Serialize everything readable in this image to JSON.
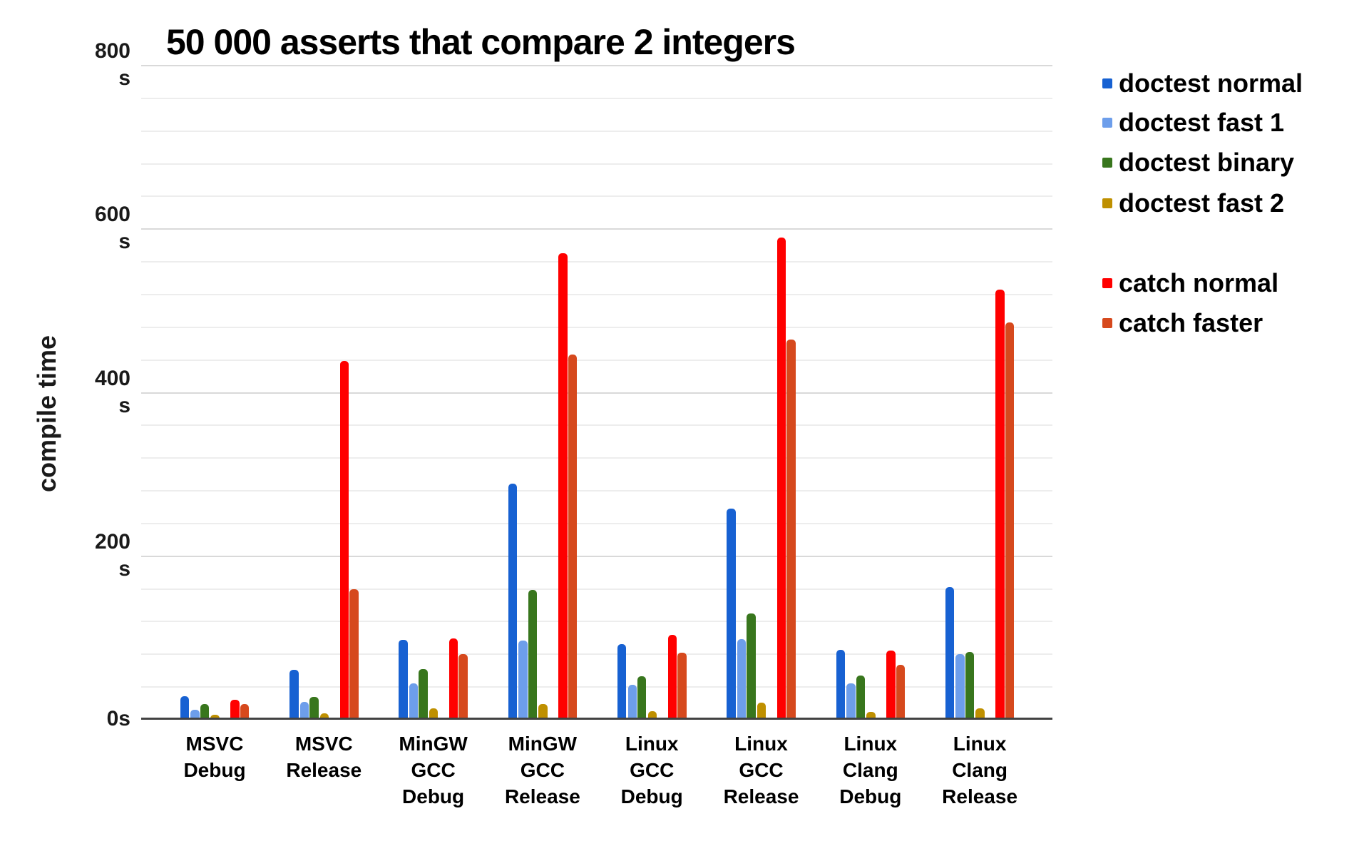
{
  "title": "50 000 asserts that compare 2 integers",
  "y_axis": {
    "title": "compile time",
    "unit": "s",
    "tick_labels": [
      "800\ns",
      "600\ns",
      "400\ns",
      "200\ns",
      "0s"
    ],
    "tick_values": [
      800,
      600,
      400,
      200,
      0
    ]
  },
  "legend": {
    "position": "right",
    "group_gap_after_index": 3,
    "entries_y": [
      117,
      172,
      228,
      285,
      397,
      453
    ]
  },
  "chart_data": {
    "type": "bar",
    "title": "50 000 asserts that compare 2 integers",
    "xlabel": "",
    "ylabel": "compile time",
    "unit": "s",
    "ylim": [
      0,
      800
    ],
    "yticks": [
      0,
      200,
      400,
      600,
      800
    ],
    "minor_gridline_step": 40,
    "grid": true,
    "legend_position": "right",
    "categories": [
      "MSVC Debug",
      "MSVC Release",
      "MinGW GCC Debug",
      "MinGW GCC Release",
      "Linux GCC Debug",
      "Linux GCC Release",
      "Linux Clang Debug",
      "Linux Clang Release"
    ],
    "category_lines": [
      [
        "MSVC",
        "Debug"
      ],
      [
        "MSVC",
        "Release"
      ],
      [
        "MinGW",
        "GCC",
        "Debug"
      ],
      [
        "MinGW",
        "GCC",
        "Release"
      ],
      [
        "Linux",
        "GCC",
        "Debug"
      ],
      [
        "Linux",
        "GCC",
        "Release"
      ],
      [
        "Linux",
        "Clang",
        "Debug"
      ],
      [
        "Linux",
        "Clang",
        "Release"
      ]
    ],
    "series": [
      {
        "name": "doctest normal",
        "color": "#1761d2",
        "values": [
          28,
          60,
          97,
          288,
          92,
          257,
          85,
          161
        ]
      },
      {
        "name": "doctest fast 1",
        "color": "#6d9eeb",
        "values": [
          11,
          21,
          44,
          96,
          42,
          98,
          44,
          79
        ]
      },
      {
        "name": "doctest binary",
        "color": "#38761d",
        "values": [
          18,
          27,
          61,
          158,
          52,
          129,
          53,
          82
        ]
      },
      {
        "name": "doctest fast 2",
        "color": "#bf9000",
        "values": [
          5,
          7,
          13,
          18,
          10,
          20,
          9,
          13
        ]
      },
      {
        "name": "catch normal",
        "color": "#ff0000",
        "values": [
          24,
          438,
          99,
          570,
          103,
          589,
          84,
          525
        ]
      },
      {
        "name": "catch faster",
        "color": "#d6491d",
        "values": [
          18,
          159,
          79,
          446,
          81,
          464,
          66,
          485
        ]
      }
    ]
  }
}
